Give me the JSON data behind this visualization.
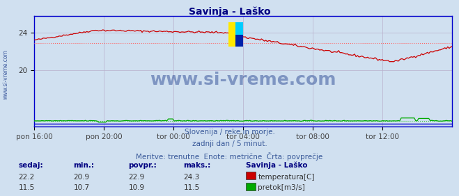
{
  "title": "Savinja - Laško",
  "title_color": "#000080",
  "bg_color": "#d0e0f0",
  "plot_bg_color": "#d0e0f0",
  "grid_color": "#b8b0cc",
  "border_color": "#0000cc",
  "x_tick_labels": [
    "pon 16:00",
    "pon 20:00",
    "tor 00:00",
    "tor 04:00",
    "tor 08:00",
    "tor 12:00"
  ],
  "y_ticks": [
    20,
    24
  ],
  "ylim": [
    14.0,
    25.8
  ],
  "temp_color": "#cc0000",
  "temp_avg_color": "#ff6666",
  "flow_color": "#00aa00",
  "flow_avg_color": "#44cc44",
  "blue_line_color": "#0000cc",
  "watermark_text": "www.si-vreme.com",
  "watermark_color": "#1a3a8a",
  "watermark_alpha": 0.45,
  "subtitle1": "Slovenija / reke in morje.",
  "subtitle2": "zadnji dan / 5 minut.",
  "subtitle3": "Meritve: trenutne  Enote: metrične  Črta: povprečje",
  "subtitle_color": "#3a5a9a",
  "legend_title": "Savinja - Laško",
  "legend_color": "#000080",
  "stats_headers": [
    "sedaj:",
    "min.:",
    "povpr.:",
    "maks.:"
  ],
  "stats_temp": [
    22.2,
    20.9,
    22.9,
    24.3
  ],
  "stats_flow": [
    11.5,
    10.7,
    10.9,
    11.5
  ],
  "stats_color": "#000080",
  "n_points": 288,
  "temp_avg_value": 22.9,
  "flow_value": 14.6,
  "flow_avg_value": 14.6,
  "blue_value": 14.3
}
